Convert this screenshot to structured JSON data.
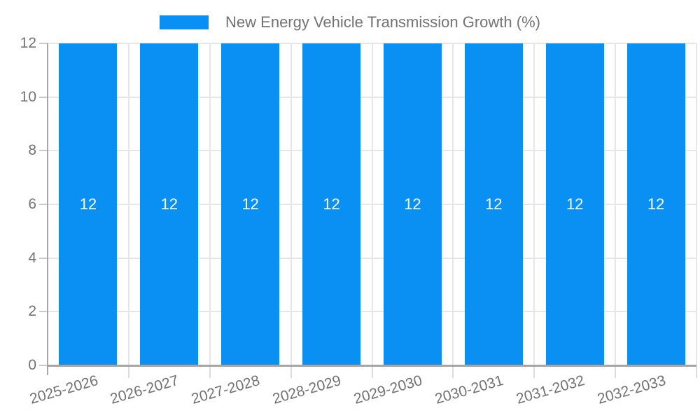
{
  "chart_data": {
    "type": "bar",
    "legend": {
      "label": "New Energy Vehicle Transmission Growth (%)",
      "position": "top-center"
    },
    "categories": [
      "2025-2026",
      "2026-2027",
      "2027-2028",
      "2028-2029",
      "2029-2030",
      "2030-2031",
      "2031-2032",
      "2032-2033"
    ],
    "values": [
      12,
      12,
      12,
      12,
      12,
      12,
      12,
      12
    ],
    "value_labels": [
      "12",
      "12",
      "12",
      "12",
      "12",
      "12",
      "12",
      "12"
    ],
    "xlabel": "",
    "ylabel": "",
    "ylim": [
      0,
      12
    ],
    "yticks": [
      0,
      2,
      4,
      6,
      8,
      10,
      12
    ],
    "grid": "on",
    "x_tick_rotation_deg": -16,
    "colors": {
      "bar": "#0A8FF2",
      "value_label": "#FFFFFF",
      "grid_line": "#E6E6E6",
      "minor_tick": "#DCDCDC",
      "axis_line": "#A6A6A6",
      "tick_label": "#737373",
      "background": "#FFFFFF"
    }
  }
}
